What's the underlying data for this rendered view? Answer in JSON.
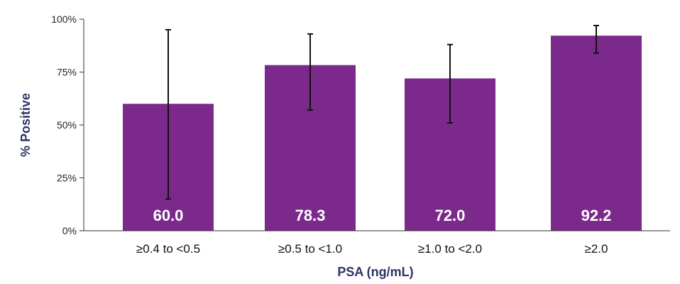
{
  "chart_data": {
    "type": "bar",
    "categories": [
      "≥0.4 to <0.5",
      "≥0.5 to <1.0",
      "≥1.0 to <2.0",
      "≥2.0"
    ],
    "values": [
      60.0,
      78.3,
      72.0,
      92.2
    ],
    "data_labels": [
      "60.0",
      "78.3",
      "72.0",
      "92.2"
    ],
    "error_bars": [
      {
        "low": 15,
        "high": 95
      },
      {
        "low": 57,
        "high": 93
      },
      {
        "low": 51,
        "high": 88
      },
      {
        "low": 84,
        "high": 97
      }
    ],
    "xlabel": "PSA (ng/mL)",
    "ylabel": "% Positive",
    "ylim": [
      0,
      100
    ],
    "yticks": [
      0,
      25,
      50,
      75,
      100
    ],
    "ytick_labels": [
      "0%",
      "25%",
      "50%",
      "75%",
      "100%"
    ],
    "grid": false,
    "colors": {
      "bar": "#7b2a8c",
      "axis_title": "#2e3466",
      "axis": "#333333",
      "error_bar": "#111111"
    }
  }
}
